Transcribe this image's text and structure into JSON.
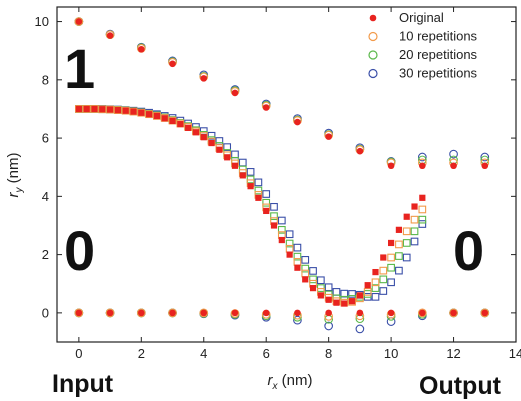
{
  "chart_data": {
    "type": "scatter",
    "xlabel": {
      "main": "r",
      "sub": "x",
      "unit": " (nm)"
    },
    "ylabel": {
      "main": "r",
      "sub": "y",
      "unit": " (nm)"
    },
    "xlim": [
      -0.7,
      14
    ],
    "ylim": [
      -1.0,
      10.5
    ],
    "xticks": [
      0,
      2,
      4,
      6,
      8,
      10,
      12,
      14
    ],
    "yticks": [
      0,
      2,
      4,
      6,
      8,
      10
    ],
    "grid": false,
    "legend": "top-right",
    "annotations": {
      "digit_top_left": "1",
      "digit_mid_left": "0",
      "digit_mid_right": "0",
      "input": "Input",
      "output": "Output"
    },
    "series": [
      {
        "name": "Original",
        "color": "#e8231f",
        "marker": "filled-circle",
        "top_x": [
          0,
          1,
          2,
          3,
          4,
          5,
          6,
          7,
          8,
          9,
          10,
          11,
          12,
          13
        ],
        "top_y": [
          10.0,
          9.52,
          9.05,
          8.55,
          8.05,
          7.55,
          7.05,
          6.55,
          6.05,
          5.55,
          5.05,
          5.05,
          5.05,
          5.05
        ],
        "bottom_x": [
          0,
          1,
          2,
          3,
          4,
          5,
          6,
          7,
          8,
          9,
          10,
          11,
          12,
          13
        ],
        "bottom_y": [
          0,
          0,
          0,
          0,
          0,
          0,
          0,
          0,
          0,
          0,
          0,
          0,
          0,
          0
        ],
        "curve_x": [
          0.0,
          0.25,
          0.5,
          0.75,
          1.0,
          1.25,
          1.5,
          1.75,
          2.0,
          2.25,
          2.5,
          2.75,
          3.0,
          3.25,
          3.5,
          3.75,
          4.0,
          4.25,
          4.5,
          4.75,
          5.0,
          5.25,
          5.5,
          5.75,
          6.0,
          6.25,
          6.5,
          6.75,
          7.0,
          7.25,
          7.5,
          7.75,
          8.0,
          8.25,
          8.5,
          8.75,
          9.0,
          9.25,
          9.5,
          9.75,
          10.0,
          10.25,
          10.5,
          10.75,
          11.0
        ],
        "curve_y": [
          7.0,
          7.0,
          7.0,
          6.99,
          6.98,
          6.96,
          6.94,
          6.91,
          6.87,
          6.82,
          6.76,
          6.68,
          6.59,
          6.48,
          6.35,
          6.2,
          6.03,
          5.83,
          5.6,
          5.34,
          5.05,
          4.72,
          4.35,
          3.95,
          3.5,
          3.0,
          2.5,
          2.0,
          1.55,
          1.15,
          0.85,
          0.6,
          0.45,
          0.35,
          0.32,
          0.4,
          0.6,
          0.95,
          1.4,
          1.9,
          2.4,
          2.85,
          3.3,
          3.65,
          3.95
        ]
      },
      {
        "name": "10 repetitions",
        "color": "#f29a4a",
        "marker": "open-circle/square",
        "top_x": [
          0,
          1,
          2,
          3,
          4,
          5,
          6,
          7,
          8,
          9,
          10,
          11,
          12,
          13
        ],
        "top_y": [
          10.0,
          9.55,
          9.08,
          8.6,
          8.1,
          7.6,
          7.1,
          6.6,
          6.1,
          5.6,
          5.15,
          5.15,
          5.15,
          5.15
        ],
        "bottom_x": [
          0,
          1,
          2,
          3,
          4,
          5,
          6,
          7,
          8,
          9,
          10,
          11,
          12,
          13
        ],
        "bottom_y": [
          0,
          0,
          0,
          0,
          0,
          -0.02,
          -0.05,
          -0.08,
          -0.12,
          -0.1,
          -0.05,
          0,
          0,
          0
        ],
        "curve_x": [
          0.0,
          0.25,
          0.5,
          0.75,
          1.0,
          1.25,
          1.5,
          1.75,
          2.0,
          2.25,
          2.5,
          2.75,
          3.0,
          3.25,
          3.5,
          3.75,
          4.0,
          4.25,
          4.5,
          4.75,
          5.0,
          5.25,
          5.5,
          5.75,
          6.0,
          6.25,
          6.5,
          6.75,
          7.0,
          7.25,
          7.5,
          7.75,
          8.0,
          8.25,
          8.5,
          8.75,
          9.0,
          9.25,
          9.5,
          9.75,
          10.0,
          10.25,
          10.5,
          10.75,
          11.0
        ],
        "curve_y": [
          7.0,
          7.0,
          7.0,
          6.99,
          6.98,
          6.96,
          6.94,
          6.91,
          6.87,
          6.82,
          6.76,
          6.69,
          6.6,
          6.5,
          6.38,
          6.23,
          6.07,
          5.88,
          5.66,
          5.41,
          5.13,
          4.8,
          4.45,
          4.05,
          3.62,
          3.15,
          2.67,
          2.2,
          1.75,
          1.35,
          1.0,
          0.72,
          0.52,
          0.4,
          0.35,
          0.38,
          0.5,
          0.72,
          1.05,
          1.45,
          1.9,
          2.35,
          2.8,
          3.2,
          3.55
        ]
      },
      {
        "name": "20 repetitions",
        "color": "#5ab84a",
        "marker": "open-circle/square",
        "top_x": [
          0,
          1,
          2,
          3,
          4,
          5,
          6,
          7,
          8,
          9,
          10,
          11,
          12,
          13
        ],
        "top_y": [
          10.0,
          9.55,
          9.1,
          8.62,
          8.12,
          7.63,
          7.13,
          6.62,
          6.12,
          5.62,
          5.18,
          5.25,
          5.25,
          5.25
        ],
        "bottom_x": [
          0,
          1,
          2,
          3,
          4,
          5,
          6,
          7,
          8,
          9,
          10,
          11,
          12,
          13
        ],
        "bottom_y": [
          0,
          0,
          0,
          0,
          -0.02,
          -0.05,
          -0.1,
          -0.15,
          -0.22,
          -0.2,
          -0.12,
          -0.05,
          0,
          0
        ],
        "curve_x": [
          0.0,
          0.25,
          0.5,
          0.75,
          1.0,
          1.25,
          1.5,
          1.75,
          2.0,
          2.25,
          2.5,
          2.75,
          3.0,
          3.25,
          3.5,
          3.75,
          4.0,
          4.25,
          4.5,
          4.75,
          5.0,
          5.25,
          5.5,
          5.75,
          6.0,
          6.25,
          6.5,
          6.75,
          7.0,
          7.25,
          7.5,
          7.75,
          8.0,
          8.25,
          8.5,
          8.75,
          9.0,
          9.25,
          9.5,
          9.75,
          10.0,
          10.25,
          10.5,
          10.75,
          11.0
        ],
        "curve_y": [
          7.0,
          7.0,
          7.0,
          6.99,
          6.98,
          6.97,
          6.95,
          6.92,
          6.88,
          6.83,
          6.78,
          6.71,
          6.62,
          6.52,
          6.41,
          6.27,
          6.11,
          5.93,
          5.73,
          5.49,
          5.22,
          4.92,
          4.58,
          4.2,
          3.78,
          3.32,
          2.85,
          2.38,
          1.93,
          1.52,
          1.15,
          0.85,
          0.63,
          0.5,
          0.45,
          0.48,
          0.55,
          0.65,
          0.85,
          1.15,
          1.55,
          1.95,
          2.4,
          2.8,
          3.2
        ]
      },
      {
        "name": "30 repetitions",
        "color": "#3a4fa8",
        "marker": "open-circle/square",
        "top_x": [
          0,
          1,
          2,
          3,
          4,
          5,
          6,
          7,
          8,
          9,
          10,
          11,
          12,
          13
        ],
        "top_y": [
          10.0,
          9.57,
          9.12,
          8.65,
          8.17,
          7.67,
          7.17,
          6.67,
          6.17,
          5.67,
          5.2,
          5.35,
          5.45,
          5.35
        ],
        "bottom_x": [
          0,
          1,
          2,
          3,
          4,
          5,
          6,
          7,
          8,
          9,
          10,
          11,
          12,
          13
        ],
        "bottom_y": [
          0,
          0,
          0,
          0,
          -0.03,
          -0.08,
          -0.15,
          -0.25,
          -0.45,
          -0.55,
          -0.3,
          -0.1,
          0,
          0
        ],
        "curve_x": [
          0.0,
          0.25,
          0.5,
          0.75,
          1.0,
          1.25,
          1.5,
          1.75,
          2.0,
          2.25,
          2.5,
          2.75,
          3.0,
          3.25,
          3.5,
          3.75,
          4.0,
          4.25,
          4.5,
          4.75,
          5.0,
          5.25,
          5.5,
          5.75,
          6.0,
          6.25,
          6.5,
          6.75,
          7.0,
          7.25,
          7.5,
          7.75,
          8.0,
          8.25,
          8.5,
          8.75,
          9.0,
          9.25,
          9.5,
          9.75,
          10.0,
          10.25,
          10.5,
          10.75,
          11.0
        ],
        "curve_y": [
          7.0,
          7.0,
          7.0,
          7.0,
          6.99,
          6.98,
          6.96,
          6.94,
          6.91,
          6.87,
          6.82,
          6.76,
          6.69,
          6.6,
          6.5,
          6.38,
          6.24,
          6.08,
          5.9,
          5.69,
          5.44,
          5.16,
          4.84,
          4.48,
          4.08,
          3.64,
          3.17,
          2.7,
          2.24,
          1.82,
          1.44,
          1.12,
          0.88,
          0.72,
          0.66,
          0.65,
          0.62,
          0.55,
          0.55,
          0.75,
          1.05,
          1.45,
          1.9,
          2.45,
          3.05
        ]
      }
    ]
  }
}
